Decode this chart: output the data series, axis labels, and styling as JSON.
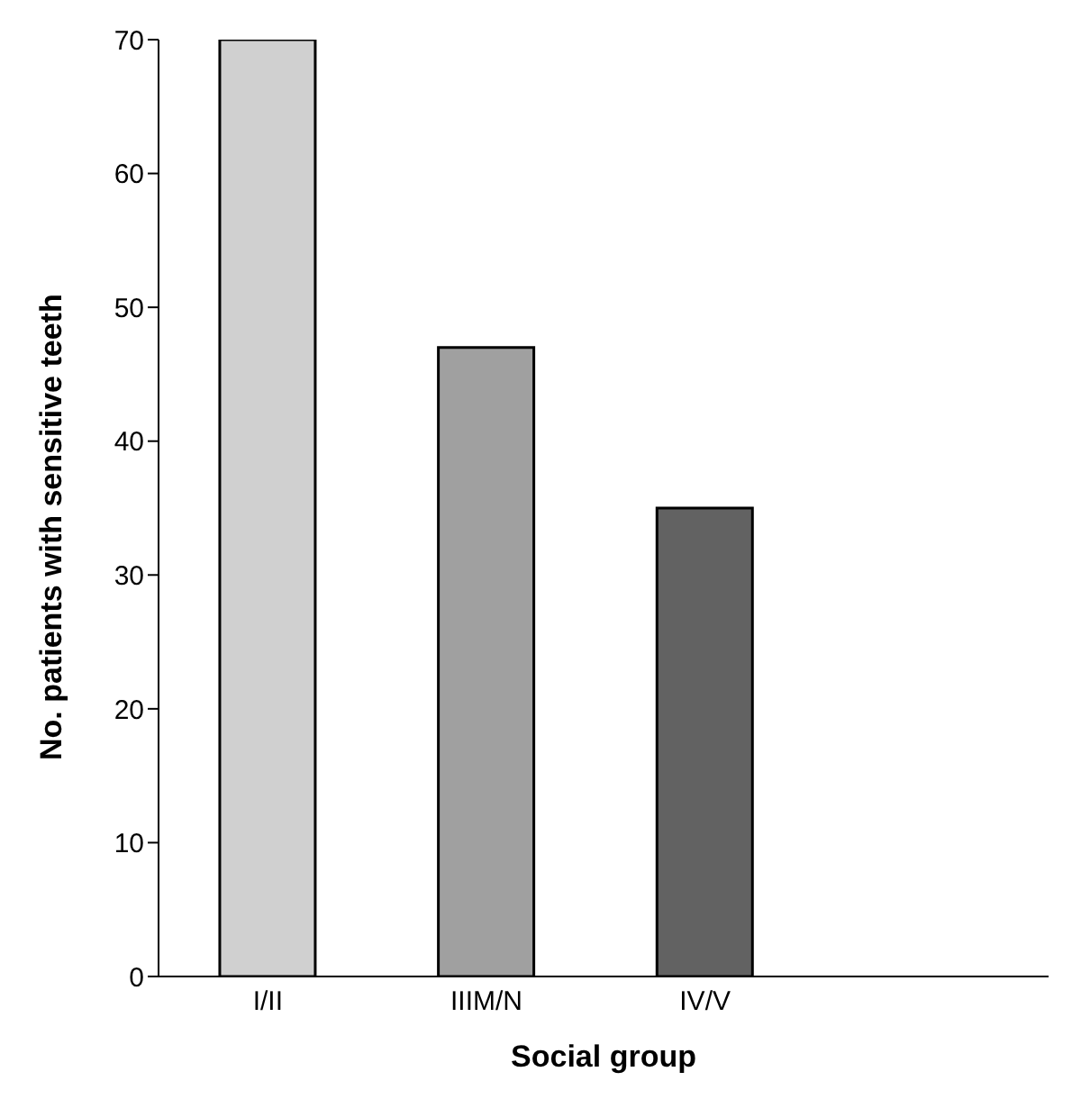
{
  "chart_data": {
    "type": "bar",
    "xlabel": "Social group",
    "ylabel": "No. patients with sensitive teeth",
    "categories": [
      "I/II",
      "IIIM/N",
      "IV/V"
    ],
    "values": [
      70,
      47,
      35
    ],
    "colors": [
      "#d0d0d0",
      "#a0a0a0",
      "#626262"
    ],
    "ylim": [
      0,
      70
    ],
    "yticks": [
      0,
      10,
      20,
      30,
      40,
      50,
      60,
      70
    ],
    "grid": false
  }
}
